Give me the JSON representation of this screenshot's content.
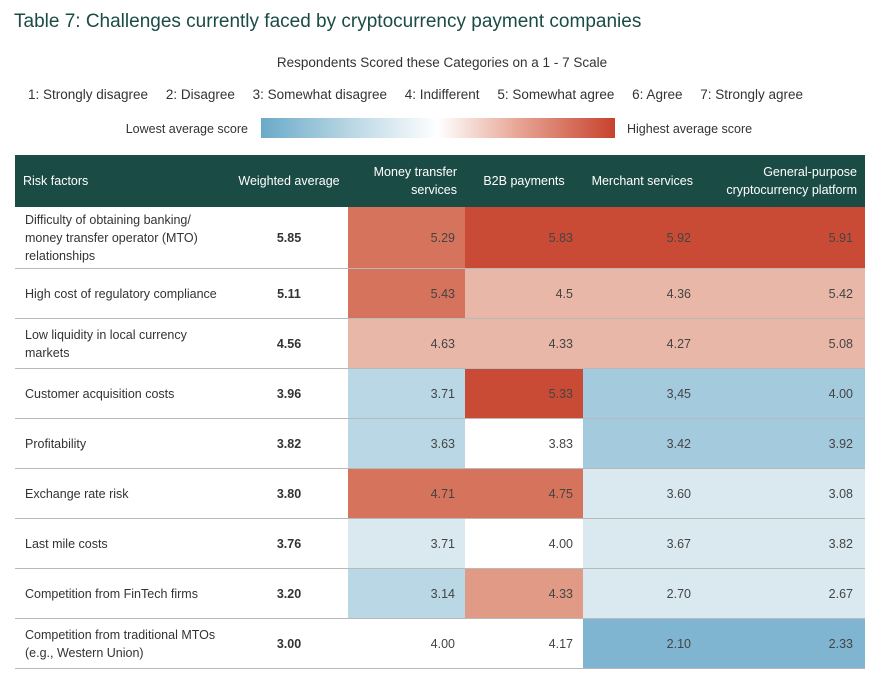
{
  "title": "Table 7: Challenges currently faced by cryptocurrency payment companies",
  "subtitle": "Respondents Scored these Categories on a 1 - 7 Scale",
  "scale_labels": [
    "1: Strongly disagree",
    "2: Disagree",
    "3: Somewhat disagree",
    "4: Indifferent",
    "5: Somewhat agree",
    "6: Agree",
    "7: Strongly agree"
  ],
  "legend": {
    "low_label": "Lowest average score",
    "high_label": "Highest average score",
    "low_color": "#6aaac8",
    "high_color": "#c8412e"
  },
  "chart_data": {
    "type": "table",
    "title": "Table 7: Challenges currently faced by cryptocurrency payment companies",
    "columns": [
      "Risk factors",
      "Weighted average",
      "Money transfer services",
      "B2B payments",
      "Merchant services",
      "General-purpose cryptocurrency platform"
    ],
    "rows": [
      {
        "factor": "Difficulty of obtaining banking/ money transfer operator (MTO) relationships",
        "weighted": "5.85",
        "values": [
          "5.29",
          "5.83",
          "5.92",
          "5.91"
        ],
        "colors": [
          "#d6735d",
          "#c94b36",
          "#c94b36",
          "#c94b36"
        ]
      },
      {
        "factor": "High cost of regulatory compliance",
        "weighted": "5.11",
        "values": [
          "5.43",
          "4.5",
          "4.36",
          "5.42"
        ],
        "colors": [
          "#d6735d",
          "#e9b7a7",
          "#e9b7a7",
          "#e9b7a7"
        ]
      },
      {
        "factor": "Low liquidity in local currency markets",
        "weighted": "4.56",
        "values": [
          "4.63",
          "4.33",
          "4.27",
          "5.08"
        ],
        "colors": [
          "#e9b7a7",
          "#e9b7a7",
          "#e9b7a7",
          "#e9b7a7"
        ]
      },
      {
        "factor": "Customer acquisition costs",
        "weighted": "3.96",
        "values": [
          "3.71",
          "5.33",
          "3,45",
          "4.00"
        ],
        "colors": [
          "#b9d7e5",
          "#c94b36",
          "#a4cade",
          "#a4cade"
        ]
      },
      {
        "factor": "Profitability",
        "weighted": "3.82",
        "values": [
          "3.63",
          "3.83",
          "3.42",
          "3.92"
        ],
        "colors": [
          "#b9d7e5",
          "#ffffff",
          "#a4cade",
          "#a4cade"
        ]
      },
      {
        "factor": "Exchange rate risk",
        "weighted": "3.80",
        "values": [
          "4.71",
          "4.75",
          "3.60",
          "3.08"
        ],
        "colors": [
          "#d6735d",
          "#d6735d",
          "#dae8f0",
          "#dae8f0"
        ]
      },
      {
        "factor": "Last mile costs",
        "weighted": "3.76",
        "values": [
          "3.71",
          "4.00",
          "3.67",
          "3.82"
        ],
        "colors": [
          "#dae8f0",
          "#ffffff",
          "#dae8f0",
          "#dae8f0"
        ]
      },
      {
        "factor": "Competition from FinTech firms",
        "weighted": "3.20",
        "values": [
          "3.14",
          "4.33",
          "2.70",
          "2.67"
        ],
        "colors": [
          "#b9d7e5",
          "#e09a85",
          "#dae8f0",
          "#dae8f0"
        ]
      },
      {
        "factor": "Competition from traditional MTOs (e.g., Western Union)",
        "weighted": "3.00",
        "values": [
          "4.00",
          "4.17",
          "2.10",
          "2.33"
        ],
        "colors": [
          "#ffffff",
          "#ffffff",
          "#7fb5d0",
          "#7fb5d0"
        ]
      }
    ]
  }
}
